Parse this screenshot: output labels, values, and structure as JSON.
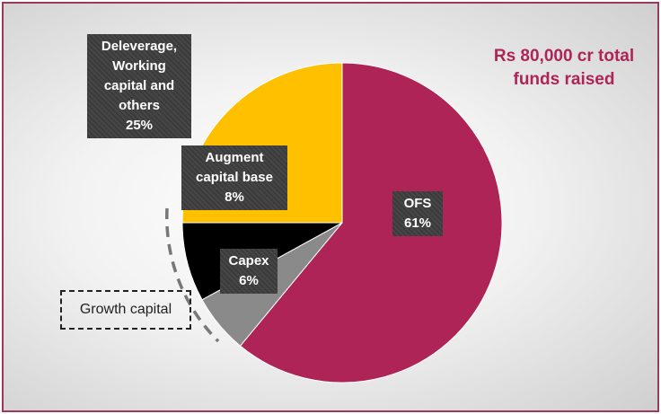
{
  "chart_data": {
    "type": "pie",
    "categories": [
      "OFS",
      "Capex",
      "Augment capital base",
      "Deleverage, Working capital and others"
    ],
    "values": [
      61,
      6,
      8,
      25
    ],
    "value_labels": [
      "61%",
      "6%",
      "8%",
      "25%"
    ],
    "colors": [
      "#ae2457",
      "#8a8a8a",
      "#000000",
      "#ffc000"
    ],
    "annotations": [
      "Rs 80,000 cr total funds raised",
      "Growth capital"
    ]
  }
}
